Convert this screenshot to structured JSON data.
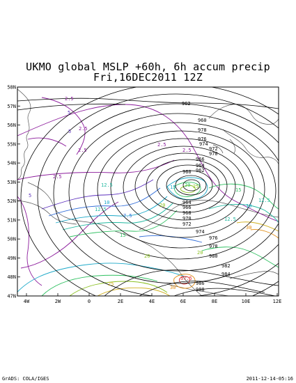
{
  "title_line1": "UKMO global MSLP +60h, 6h accum precip",
  "title_line2": "Fri,16DEC2011 12Z",
  "footer_left": "GrADS: COLA/IGES",
  "footer_right": "2011-12-14-05:16",
  "lat_ticks": [
    "58N",
    "57N",
    "56N",
    "55N",
    "54N",
    "53N",
    "52N",
    "51N",
    "50N",
    "49N",
    "48N",
    "47N"
  ],
  "lon_ticks": [
    "4W",
    "2W",
    "0",
    "2E",
    "4E",
    "6E",
    "8E",
    "10E",
    "12E"
  ],
  "isobar_labels": [
    "962",
    "960",
    "978",
    "976",
    "974",
    "972",
    "970",
    "966",
    "964",
    "962",
    "960",
    "964",
    "966",
    "968",
    "970",
    "972",
    "974",
    "976",
    "978",
    "980",
    "982",
    "984",
    "986",
    "988"
  ],
  "precip_labels": [
    "2.5",
    "5",
    "2.5",
    "5",
    "2.5",
    "2.5",
    "2.5",
    "2.5",
    "15",
    "20",
    "25",
    "12.5",
    "12.5",
    "10",
    "5",
    "10",
    "7.5",
    "20",
    "30",
    "37.5",
    "20",
    "15",
    "12.5",
    "12.5",
    "30",
    "15",
    "20",
    "25"
  ],
  "colors": {
    "isobar": "#000000",
    "coast": "#555555",
    "precip_2_5": "#8b1a9b",
    "precip_5": "#5a2dbd",
    "precip_7_5": "#2e6bd8",
    "precip_10": "#1aa8c8",
    "precip_12_5": "#20b8a0",
    "precip_15": "#2ec060",
    "precip_20": "#8ac020",
    "precip_25": "#d0b020",
    "precip_30": "#e08a10",
    "precip_37_5": "#e03030"
  }
}
